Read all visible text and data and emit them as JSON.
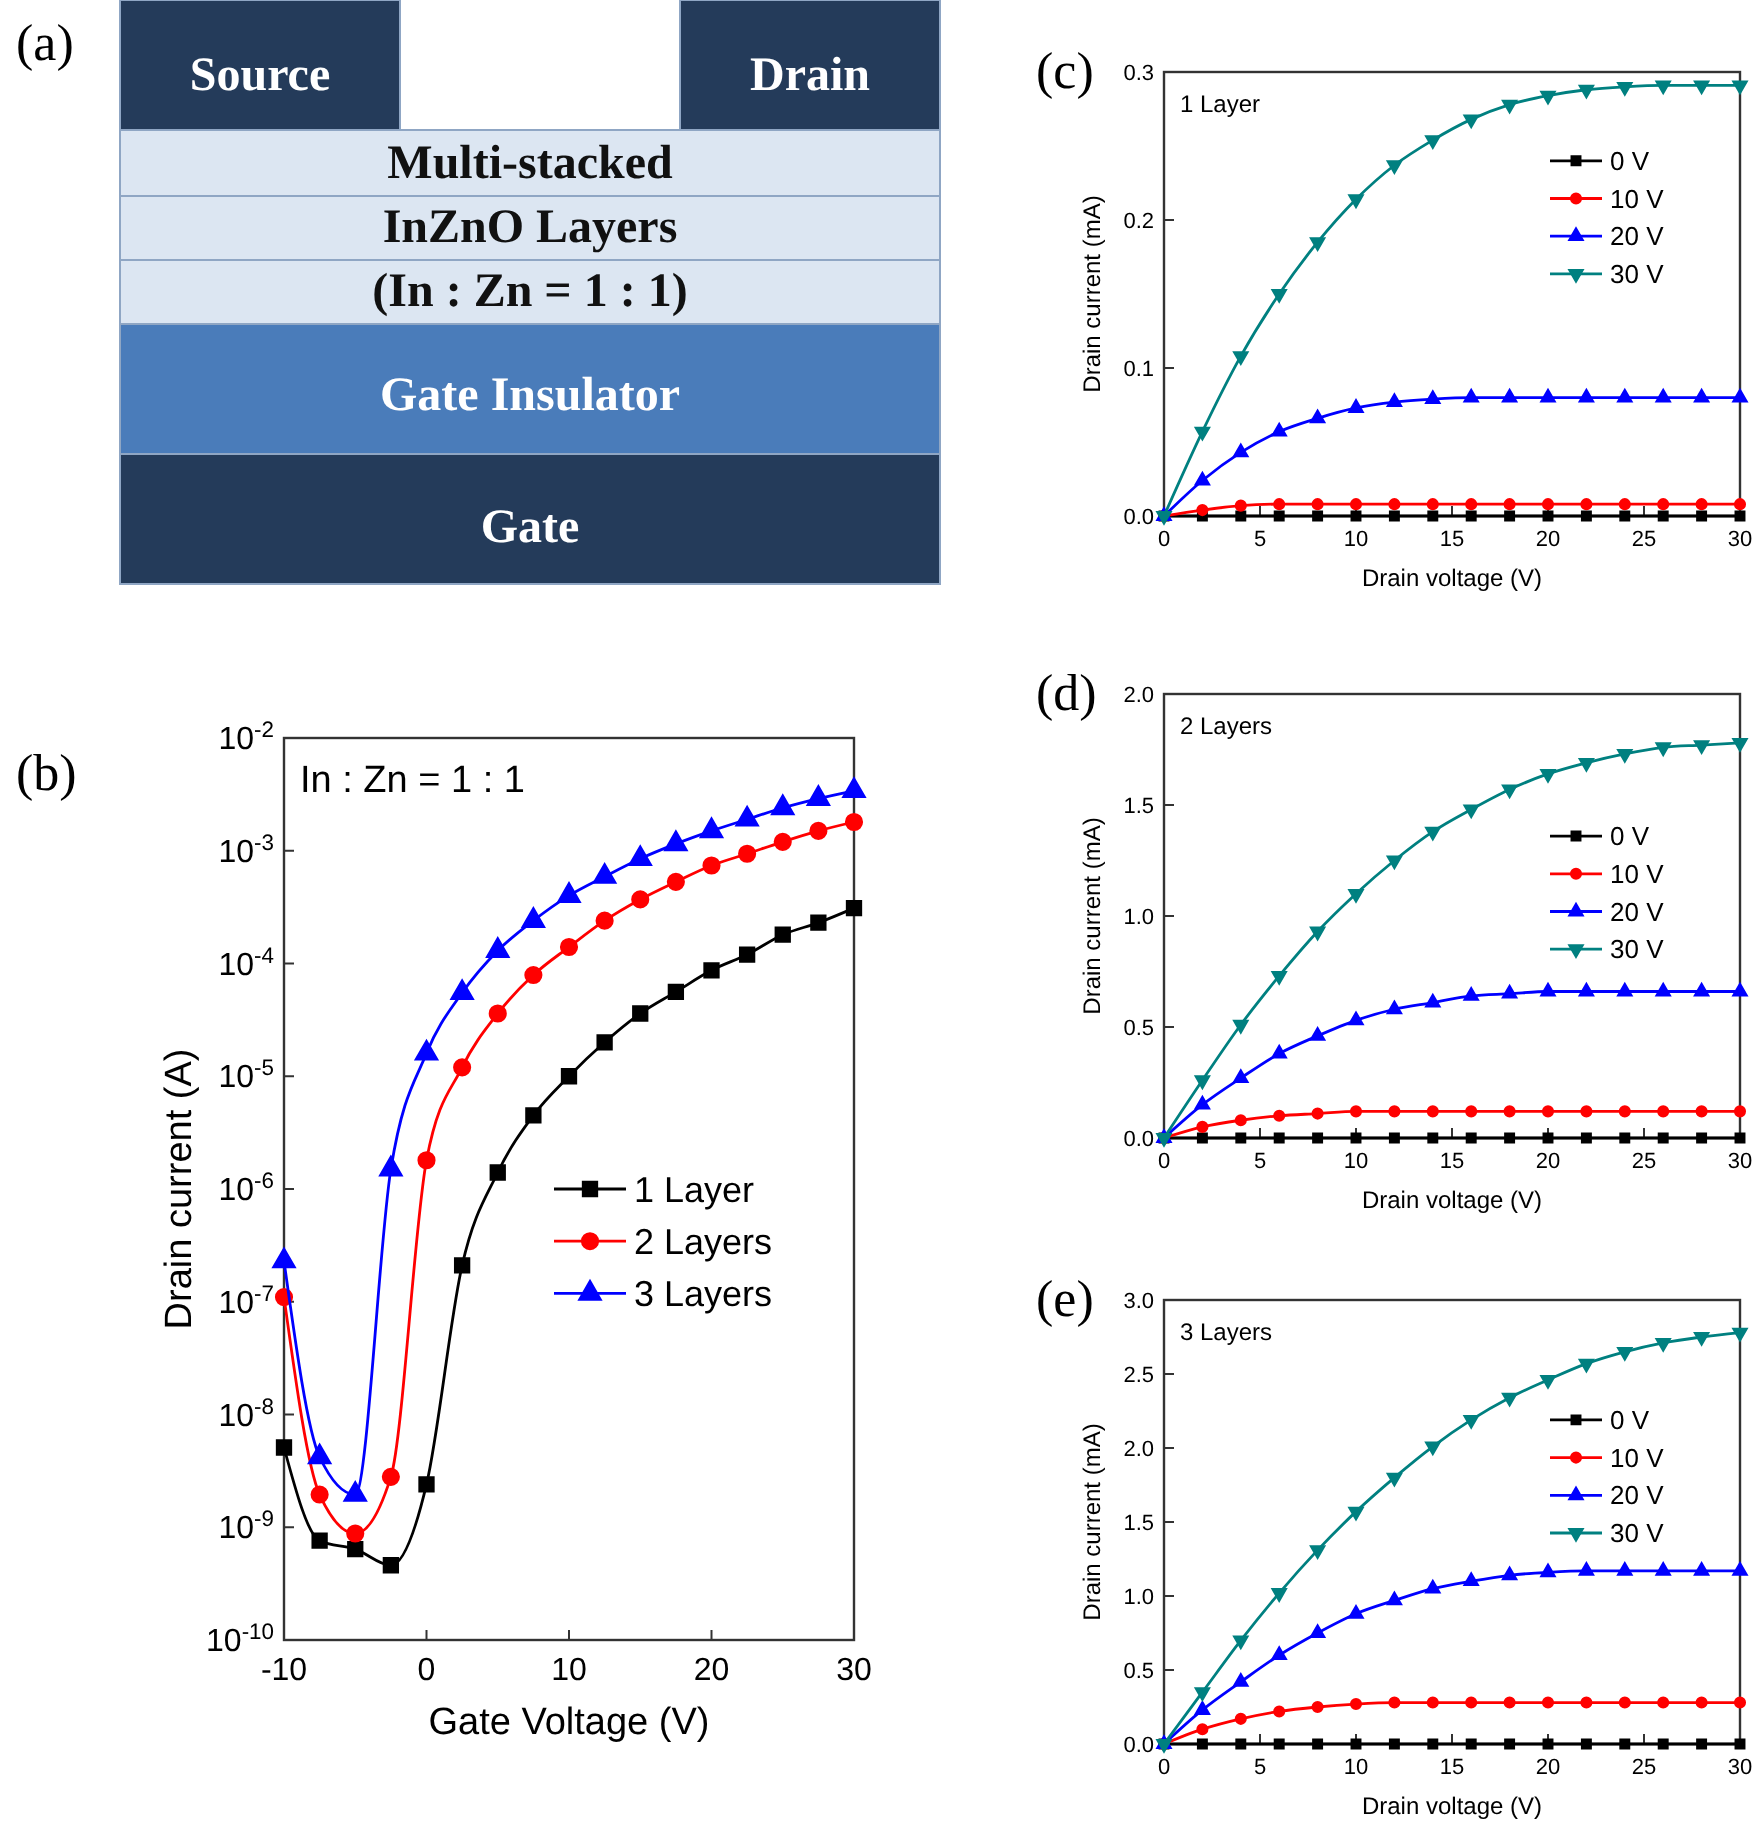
{
  "chart_data": [
    {
      "type": "other",
      "title": "(a)",
      "annotations": [
        "Source",
        "Drain",
        "Multi-stacked",
        "InZnO Layers",
        "(In : Zn = 1 : 1)",
        "Gate Insulator",
        "Gate"
      ]
    },
    {
      "type": "line",
      "title": "(b)",
      "xlabel": "Gate Voltage (V)",
      "ylabel": "Drain current (A)",
      "log": "y",
      "xlim": [
        -10,
        30
      ],
      "xticks": [
        -10,
        0,
        10,
        20,
        30
      ],
      "ylim": [
        1e-10,
        0.01
      ],
      "yticks": [
        {
          "value": 1e-10,
          "label": "10$^{-10}$"
        },
        {
          "value": 1e-09,
          "label": "10$^{-9}$"
        },
        {
          "value": 1e-08,
          "label": "10$^{-8}$"
        },
        {
          "value": 1e-07,
          "label": "10$^{-7}$"
        },
        {
          "value": 1e-06,
          "label": "10$^{-6}$"
        },
        {
          "value": 1e-05,
          "label": "10$^{-5}$"
        },
        {
          "value": 0.0001,
          "label": "10$^{-4}$"
        },
        {
          "value": 0.001,
          "label": "10$^{-3}$"
        },
        {
          "value": 0.01,
          "label": "10$^{-2}$"
        }
      ],
      "legend": "right",
      "annotations": [
        "In : Zn = 1 : 1"
      ],
      "x": [
        -10,
        -7.5,
        -5,
        -2.5,
        0,
        2.5,
        5,
        7.5,
        10,
        12.5,
        15,
        17.5,
        20,
        22.5,
        25,
        27.5,
        30
      ],
      "series": [
        {
          "name": "1 Layer",
          "color": "#000000",
          "marker": "square",
          "values": [
            5.1e-09,
            7.6e-10,
            6.4e-10,
            4.6e-10,
            2.4e-09,
            2.1e-07,
            1.4e-06,
            4.5e-06,
            1e-05,
            2e-05,
            3.6e-05,
            5.6e-05,
            8.7e-05,
            0.00012,
            0.00018,
            0.00023,
            0.00031
          ]
        },
        {
          "name": "2 Layers",
          "color": "#ff0000",
          "marker": "circle",
          "values": [
            1.1e-07,
            1.95e-09,
            8.8e-10,
            2.8e-09,
            1.8e-06,
            1.2e-05,
            3.6e-05,
            7.9e-05,
            0.00014,
            0.00024,
            0.00037,
            0.00053,
            0.00074,
            0.00094,
            0.0012,
            0.0015,
            0.0018
          ]
        },
        {
          "name": "3 Layers",
          "color": "#0000ff",
          "marker": "triangle",
          "values": [
            2.3e-07,
            4.2e-09,
            1.95e-09,
            1.5e-06,
            1.6e-05,
            5.5e-05,
            0.00013,
            0.00024,
            0.0004,
            0.00059,
            0.00085,
            0.00115,
            0.0015,
            0.0019,
            0.0024,
            0.0029,
            0.0034
          ]
        }
      ]
    },
    {
      "type": "line",
      "title": "(c)",
      "xlabel": "Drain voltage (V)",
      "ylabel": "Drain current (mA)",
      "xlim": [
        0,
        30
      ],
      "xticks": [
        0,
        5,
        10,
        15,
        20,
        25,
        30
      ],
      "ylim": [
        0,
        0.3
      ],
      "yticks": [
        {
          "value": 0,
          "label": "0.0"
        },
        0.1,
        0.2,
        0.3
      ],
      "legend": "top right",
      "annotations": [
        "1 Layer"
      ],
      "x": [
        0,
        2,
        4,
        6,
        8,
        10,
        12,
        14,
        16,
        18,
        20,
        22,
        24,
        26,
        28,
        30
      ],
      "series": [
        {
          "name": "0 V",
          "color": "#000000",
          "marker": "square",
          "values": [
            0,
            0,
            0,
            0,
            0,
            0,
            0,
            0,
            0,
            0,
            0,
            0,
            0,
            0,
            0,
            0
          ]
        },
        {
          "name": "10 V",
          "color": "#ff0000",
          "marker": "circle",
          "values": [
            0,
            0.004,
            0.007,
            0.008,
            0.008,
            0.008,
            0.008,
            0.008,
            0.008,
            0.008,
            0.008,
            0.008,
            0.008,
            0.008,
            0.008,
            0.008
          ]
        },
        {
          "name": "20 V",
          "color": "#0000ff",
          "marker": "triangle",
          "values": [
            0,
            0.024,
            0.043,
            0.057,
            0.066,
            0.073,
            0.077,
            0.079,
            0.08,
            0.08,
            0.08,
            0.08,
            0.08,
            0.08,
            0.08,
            0.08
          ]
        },
        {
          "name": "30 V",
          "color": "#008080",
          "marker": "triangle-down",
          "values": [
            0,
            0.057,
            0.108,
            0.15,
            0.185,
            0.214,
            0.237,
            0.254,
            0.268,
            0.278,
            0.284,
            0.288,
            0.29,
            0.291,
            0.291,
            0.291
          ]
        }
      ]
    },
    {
      "type": "line",
      "title": "(d)",
      "xlabel": "Drain voltage (V)",
      "ylabel": "Drain current (mA)",
      "xlim": [
        0,
        30
      ],
      "xticks": [
        0,
        5,
        10,
        15,
        20,
        25,
        30
      ],
      "ylim": [
        0,
        2
      ],
      "yticks": [
        {
          "value": 0,
          "label": "0.0"
        },
        0.5,
        {
          "value": 1,
          "label": "1.0"
        },
        1.5,
        {
          "value": 2,
          "label": "2.0"
        }
      ],
      "legend": "top right",
      "annotations": [
        "2 Layers"
      ],
      "x": [
        0,
        2,
        4,
        6,
        8,
        10,
        12,
        14,
        16,
        18,
        20,
        22,
        24,
        26,
        28,
        30
      ],
      "series": [
        {
          "name": "0 V",
          "color": "#000000",
          "marker": "square",
          "values": [
            0,
            0,
            0,
            0,
            0,
            0,
            0,
            0,
            0,
            0,
            0,
            0,
            0,
            0,
            0,
            0
          ]
        },
        {
          "name": "10 V",
          "color": "#ff0000",
          "marker": "circle",
          "values": [
            0,
            0.05,
            0.08,
            0.1,
            0.11,
            0.12,
            0.12,
            0.12,
            0.12,
            0.12,
            0.12,
            0.12,
            0.12,
            0.12,
            0.12,
            0.12
          ]
        },
        {
          "name": "20 V",
          "color": "#0000ff",
          "marker": "triangle",
          "values": [
            0,
            0.15,
            0.27,
            0.38,
            0.46,
            0.53,
            0.58,
            0.61,
            0.64,
            0.65,
            0.66,
            0.66,
            0.66,
            0.66,
            0.66,
            0.66
          ]
        },
        {
          "name": "30 V",
          "color": "#008080",
          "marker": "triangle-down",
          "values": [
            0,
            0.26,
            0.51,
            0.73,
            0.93,
            1.1,
            1.25,
            1.38,
            1.48,
            1.57,
            1.64,
            1.69,
            1.73,
            1.76,
            1.77,
            1.78
          ]
        }
      ]
    },
    {
      "type": "line",
      "title": "(e)",
      "xlabel": "Drain voltage (V)",
      "ylabel": "Drain current (mA)",
      "xlim": [
        0,
        30
      ],
      "xticks": [
        0,
        5,
        10,
        15,
        20,
        25,
        30
      ],
      "ylim": [
        0,
        3
      ],
      "yticks": [
        {
          "value": 0,
          "label": "0.0"
        },
        0.5,
        {
          "value": 1,
          "label": "1.0"
        },
        1.5,
        {
          "value": 2,
          "label": "2.0"
        },
        2.5,
        {
          "value": 3,
          "label": "3.0"
        }
      ],
      "legend": "top right",
      "annotations": [
        "3 Layers"
      ],
      "x": [
        0,
        2,
        4,
        6,
        8,
        10,
        12,
        14,
        16,
        18,
        20,
        22,
        24,
        26,
        28,
        30
      ],
      "series": [
        {
          "name": "0 V",
          "color": "#000000",
          "marker": "square",
          "values": [
            0,
            0,
            0,
            0,
            0,
            0,
            0,
            0,
            0,
            0,
            0,
            0,
            0,
            0,
            0,
            0
          ]
        },
        {
          "name": "10 V",
          "color": "#ff0000",
          "marker": "circle",
          "values": [
            0,
            0.1,
            0.17,
            0.22,
            0.25,
            0.27,
            0.28,
            0.28,
            0.28,
            0.28,
            0.28,
            0.28,
            0.28,
            0.28,
            0.28,
            0.28
          ]
        },
        {
          "name": "20 V",
          "color": "#0000ff",
          "marker": "triangle",
          "values": [
            0,
            0.23,
            0.42,
            0.6,
            0.75,
            0.88,
            0.97,
            1.05,
            1.1,
            1.14,
            1.16,
            1.17,
            1.17,
            1.17,
            1.17,
            1.17
          ]
        },
        {
          "name": "30 V",
          "color": "#008080",
          "marker": "triangle-down",
          "values": [
            0,
            0.35,
            0.7,
            1.02,
            1.31,
            1.57,
            1.8,
            2.01,
            2.19,
            2.34,
            2.46,
            2.57,
            2.65,
            2.71,
            2.75,
            2.78
          ]
        }
      ]
    }
  ]
}
